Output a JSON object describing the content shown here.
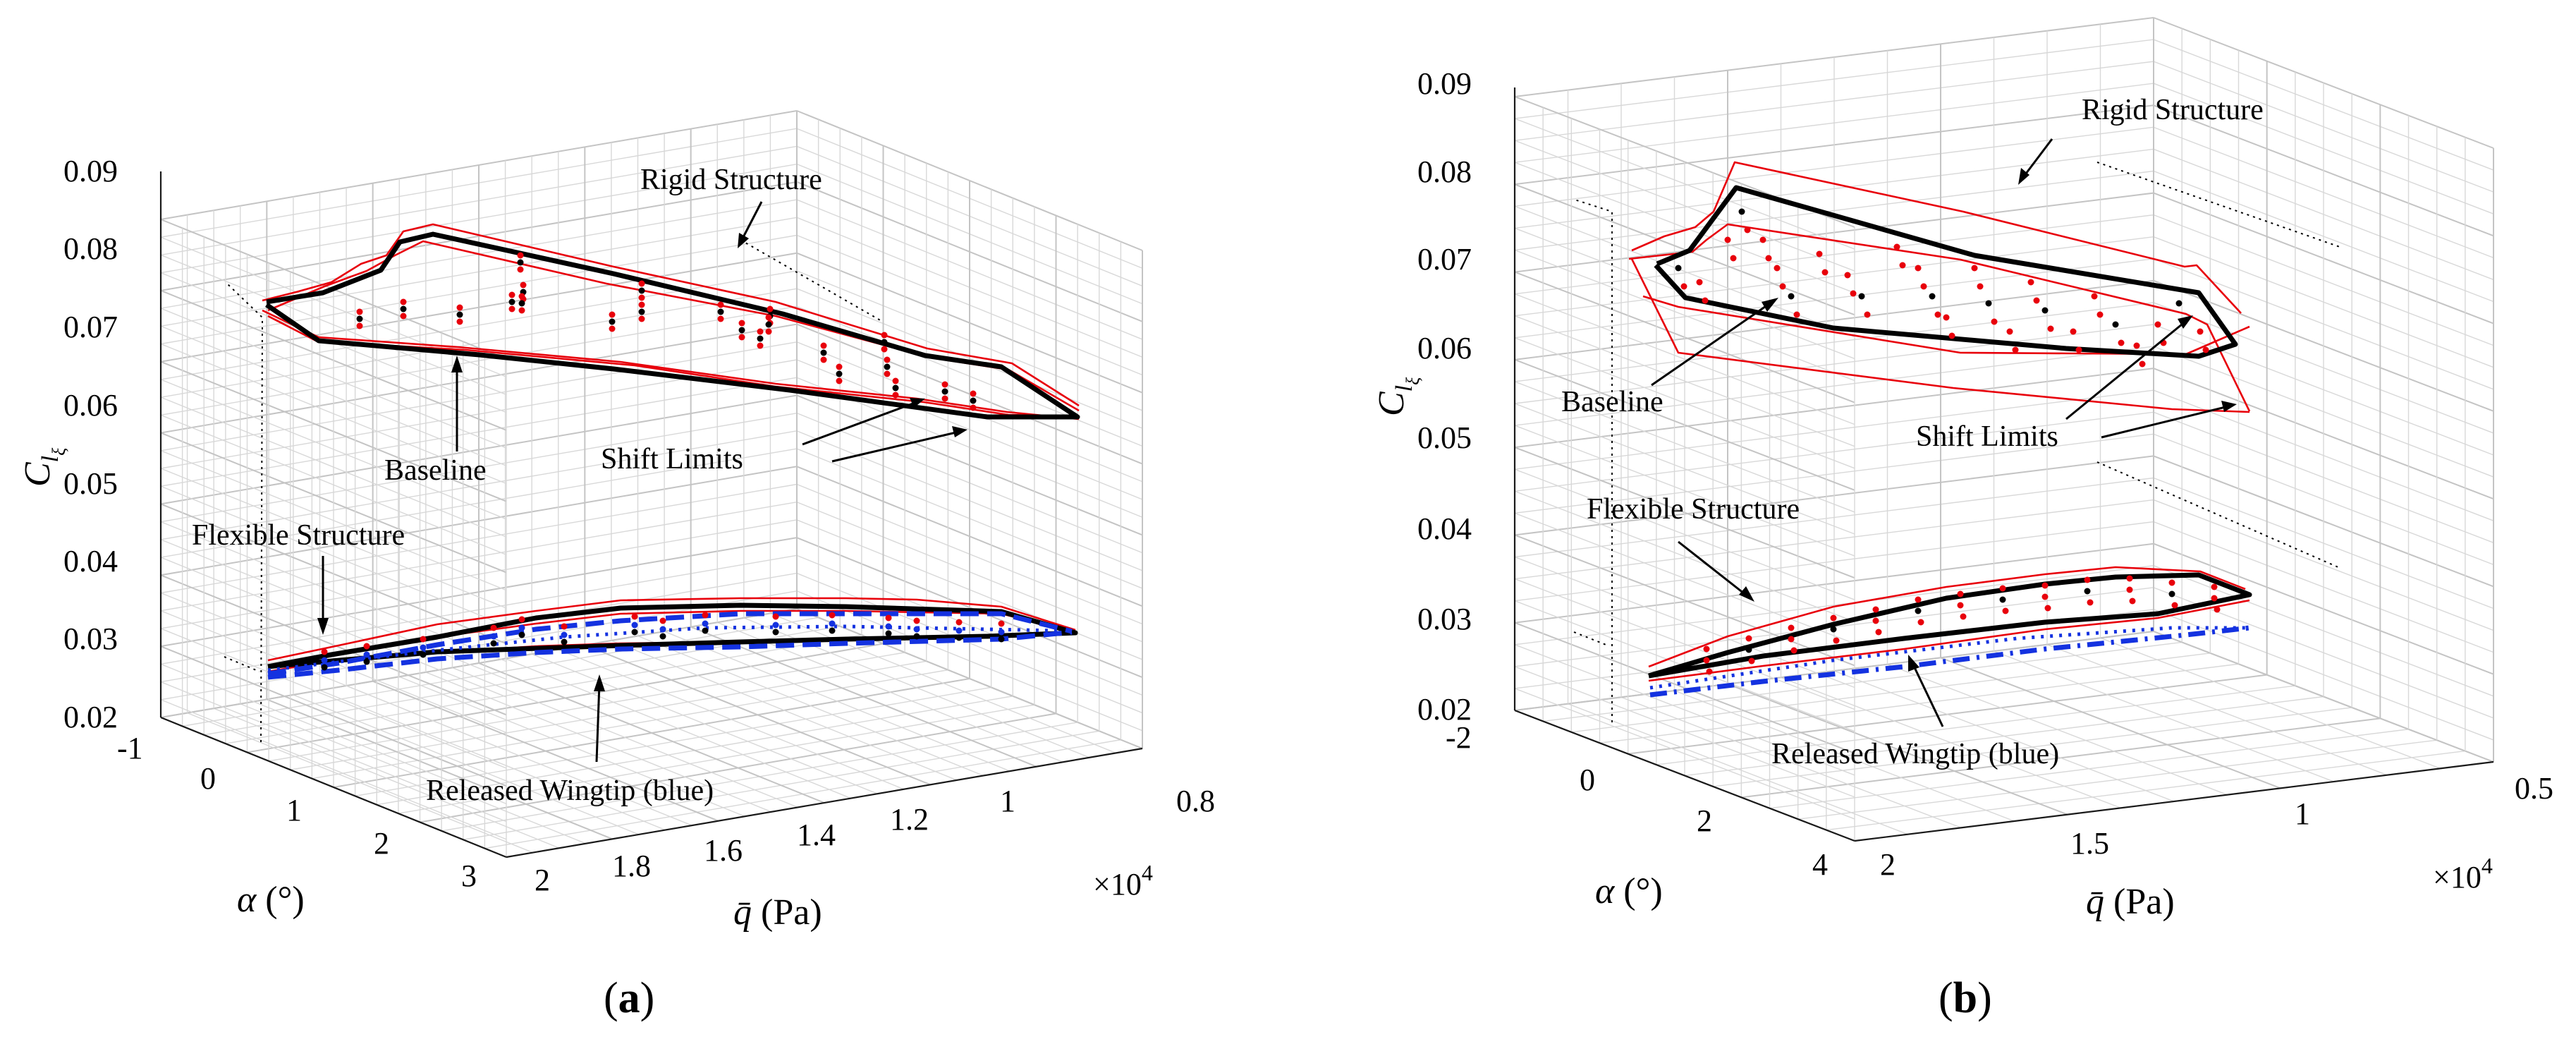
{
  "chart_data": [
    {
      "type": "3d-line",
      "panel_label": "(a)",
      "zlabel_base": "C",
      "zlabel_sub1": "l",
      "zlabel_sub2": "ξ",
      "xlabel_sym": "α",
      "xlabel_unit": "(°)",
      "ylabel_sym": "q̄",
      "ylabel_unit": "(Pa)",
      "y_multiplier": "×10",
      "y_multiplier_exp": "4",
      "zlim": [
        0.02,
        0.09
      ],
      "z_ticks": [
        "0.02",
        "0.03",
        "0.04",
        "0.05",
        "0.06",
        "0.07",
        "0.08",
        "0.09"
      ],
      "x_ticks": [
        "-1",
        "0",
        "1",
        "2",
        "3"
      ],
      "y_ticks": [
        "2",
        "1.8",
        "1.6",
        "1.4",
        "1.2",
        "1",
        "0.8"
      ],
      "annotations": {
        "rigid": "Rigid Structure",
        "baseline": "Baseline",
        "shift": "Shift Limits",
        "flexible": "Flexible Structure",
        "released": "Released Wingtip (blue)"
      },
      "series": [
        {
          "name": "Rigid Structure - Baseline",
          "color": "#000000",
          "approx_range": [
            0.058,
            0.081
          ]
        },
        {
          "name": "Rigid Structure - Shift Limits",
          "color": "#e8000b",
          "approx_range": [
            0.057,
            0.082
          ]
        },
        {
          "name": "Flexible Structure - Baseline",
          "color": "#000000",
          "approx_range": [
            0.026,
            0.035
          ]
        },
        {
          "name": "Flexible Structure - Shift Limits",
          "color": "#e8000b",
          "approx_range": [
            0.025,
            0.036
          ]
        },
        {
          "name": "Released Wingtip (blue)",
          "color": "#1432e0",
          "approx_range": [
            0.025,
            0.034
          ]
        }
      ]
    },
    {
      "type": "3d-line",
      "panel_label": "(b)",
      "zlabel_base": "C",
      "zlabel_sub1": "l",
      "zlabel_sub2": "ξ",
      "xlabel_sym": "α",
      "xlabel_unit": "(°)",
      "ylabel_sym": "q̄",
      "ylabel_unit": "(Pa)",
      "y_multiplier": "×10",
      "y_multiplier_exp": "4",
      "zlim": [
        0.02,
        0.09
      ],
      "z_ticks": [
        "0.02",
        "0.03",
        "0.04",
        "0.05",
        "0.06",
        "0.07",
        "0.08",
        "0.09"
      ],
      "x_ticks": [
        "-2",
        "0",
        "2",
        "4"
      ],
      "y_ticks": [
        "2",
        "1.5",
        "1",
        "0.5"
      ],
      "annotations": {
        "rigid": "Rigid Structure",
        "baseline": "Baseline",
        "shift": "Shift Limits",
        "flexible": "Flexible Structure",
        "released": "Released Wingtip (blue)"
      },
      "series": [
        {
          "name": "Rigid Structure - Baseline",
          "color": "#000000",
          "approx_range": [
            0.06,
            0.079
          ]
        },
        {
          "name": "Rigid Structure - Shift Limits",
          "color": "#e8000b",
          "approx_range": [
            0.056,
            0.082
          ]
        },
        {
          "name": "Flexible Structure - Baseline",
          "color": "#000000",
          "approx_range": [
            0.024,
            0.035
          ]
        },
        {
          "name": "Flexible Structure - Shift Limits",
          "color": "#e8000b",
          "approx_range": [
            0.023,
            0.036
          ]
        },
        {
          "name": "Released Wingtip (blue)",
          "color": "#1432e0",
          "approx_range": [
            0.022,
            0.03
          ]
        }
      ]
    }
  ]
}
